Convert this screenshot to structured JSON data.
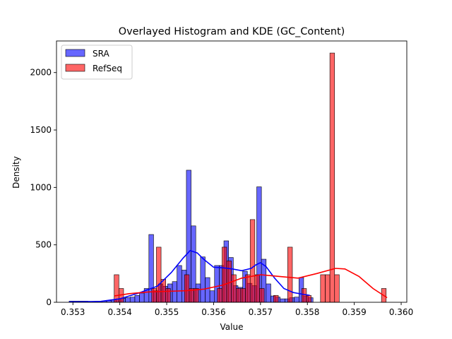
{
  "chart_data": {
    "type": "bar",
    "title": "Overlayed Histogram and KDE (GC_Content)",
    "xlabel": "Value",
    "ylabel": "Density",
    "xlim": [
      0.35265,
      0.36012
    ],
    "ylim": [
      0,
      2275
    ],
    "xticks": [
      0.353,
      0.354,
      0.355,
      0.356,
      0.357,
      0.358,
      0.359,
      0.36
    ],
    "xtick_labels": [
      "0.353",
      "0.354",
      "0.355",
      "0.356",
      "0.357",
      "0.358",
      "0.359",
      "0.360"
    ],
    "yticks": [
      0,
      500,
      1000,
      1500,
      2000
    ],
    "ytick_labels": [
      "0",
      "500",
      "1000",
      "1500",
      "2000"
    ],
    "grid": false,
    "legend_position": "upper-left",
    "series": [
      {
        "name": "SRA",
        "kind": "histogram",
        "color": "#0000ff",
        "alpha": 0.6,
        "bin_width": 0.0001,
        "bins": [
          [
            0.35292,
            10
          ],
          [
            0.35302,
            10
          ],
          [
            0.35312,
            10
          ],
          [
            0.35322,
            10
          ],
          [
            0.35332,
            5
          ],
          [
            0.35342,
            5
          ],
          [
            0.35352,
            5
          ],
          [
            0.35362,
            10
          ],
          [
            0.35372,
            15
          ],
          [
            0.35382,
            20
          ],
          [
            0.35392,
            30
          ],
          [
            0.35402,
            35
          ],
          [
            0.35412,
            40
          ],
          [
            0.35422,
            45
          ],
          [
            0.35432,
            60
          ],
          [
            0.35442,
            80
          ],
          [
            0.35452,
            120
          ],
          [
            0.35462,
            590
          ],
          [
            0.35472,
            100
          ],
          [
            0.35482,
            160
          ],
          [
            0.35492,
            140
          ],
          [
            0.35502,
            160
          ],
          [
            0.35512,
            180
          ],
          [
            0.35522,
            320
          ],
          [
            0.35532,
            280
          ],
          [
            0.35542,
            1150
          ],
          [
            0.35552,
            665
          ],
          [
            0.35562,
            160
          ],
          [
            0.35572,
            395
          ],
          [
            0.35582,
            215
          ],
          [
            0.35592,
            100
          ],
          [
            0.35602,
            320
          ],
          [
            0.35612,
            320
          ],
          [
            0.35622,
            535
          ],
          [
            0.35632,
            390
          ],
          [
            0.35642,
            145
          ],
          [
            0.35652,
            130
          ],
          [
            0.35662,
            270
          ],
          [
            0.35672,
            165
          ],
          [
            0.35682,
            145
          ],
          [
            0.35692,
            1005
          ],
          [
            0.35702,
            375
          ],
          [
            0.35712,
            160
          ],
          [
            0.35722,
            55
          ],
          [
            0.35732,
            45
          ],
          [
            0.35742,
            30
          ],
          [
            0.35752,
            30
          ],
          [
            0.35762,
            40
          ],
          [
            0.35772,
            45
          ],
          [
            0.35782,
            215
          ],
          [
            0.35792,
            55
          ],
          [
            0.35802,
            40
          ]
        ],
        "kde": [
          [
            0.35292,
            5
          ],
          [
            0.3532,
            5
          ],
          [
            0.3536,
            8
          ],
          [
            0.354,
            30
          ],
          [
            0.3544,
            80
          ],
          [
            0.3548,
            140
          ],
          [
            0.3551,
            260
          ],
          [
            0.35535,
            385
          ],
          [
            0.3555,
            450
          ],
          [
            0.35565,
            430
          ],
          [
            0.3558,
            370
          ],
          [
            0.356,
            305
          ],
          [
            0.3562,
            300
          ],
          [
            0.3564,
            290
          ],
          [
            0.3566,
            275
          ],
          [
            0.3568,
            295
          ],
          [
            0.3569,
            325
          ],
          [
            0.357,
            345
          ],
          [
            0.35712,
            310
          ],
          [
            0.3573,
            210
          ],
          [
            0.3575,
            120
          ],
          [
            0.3577,
            85
          ],
          [
            0.3579,
            70
          ],
          [
            0.35805,
            60
          ]
        ]
      },
      {
        "name": "RefSeq",
        "kind": "histogram",
        "color": "#ff0000",
        "alpha": 0.6,
        "bin_width": 0.0001,
        "bins": [
          [
            0.35388,
            240
          ],
          [
            0.35398,
            120
          ],
          [
            0.35408,
            0
          ],
          [
            0.35418,
            0
          ],
          [
            0.35428,
            0
          ],
          [
            0.35438,
            0
          ],
          [
            0.35448,
            0
          ],
          [
            0.35458,
            0
          ],
          [
            0.35468,
            120
          ],
          [
            0.35478,
            480
          ],
          [
            0.35488,
            200
          ],
          [
            0.35498,
            120
          ],
          [
            0.35508,
            0
          ],
          [
            0.35518,
            0
          ],
          [
            0.35528,
            0
          ],
          [
            0.35538,
            240
          ],
          [
            0.35548,
            120
          ],
          [
            0.35558,
            120
          ],
          [
            0.35568,
            0
          ],
          [
            0.35578,
            0
          ],
          [
            0.35588,
            0
          ],
          [
            0.35598,
            0
          ],
          [
            0.35608,
            120
          ],
          [
            0.35618,
            480
          ],
          [
            0.35628,
            360
          ],
          [
            0.35638,
            240
          ],
          [
            0.35648,
            120
          ],
          [
            0.35658,
            120
          ],
          [
            0.35668,
            240
          ],
          [
            0.35678,
            720
          ],
          [
            0.35688,
            240
          ],
          [
            0.35698,
            120
          ],
          [
            0.35708,
            0
          ],
          [
            0.35718,
            0
          ],
          [
            0.35728,
            60
          ],
          [
            0.35738,
            0
          ],
          [
            0.35748,
            0
          ],
          [
            0.35758,
            480
          ],
          [
            0.35768,
            0
          ],
          [
            0.35778,
            0
          ],
          [
            0.35788,
            120
          ],
          [
            0.35798,
            60
          ],
          [
            0.35808,
            0
          ],
          [
            0.35818,
            0
          ],
          [
            0.35828,
            240
          ],
          [
            0.35838,
            240
          ],
          [
            0.35848,
            2170
          ],
          [
            0.35858,
            240
          ],
          [
            0.35868,
            0
          ],
          [
            0.35878,
            0
          ],
          [
            0.35888,
            0
          ],
          [
            0.35898,
            0
          ],
          [
            0.35908,
            0
          ],
          [
            0.35918,
            0
          ],
          [
            0.35928,
            0
          ],
          [
            0.35938,
            0
          ],
          [
            0.35948,
            0
          ],
          [
            0.35958,
            120
          ]
        ],
        "kde": [
          [
            0.35388,
            55
          ],
          [
            0.3542,
            75
          ],
          [
            0.3546,
            90
          ],
          [
            0.355,
            95
          ],
          [
            0.3554,
            100
          ],
          [
            0.3558,
            115
          ],
          [
            0.3562,
            150
          ],
          [
            0.3566,
            210
          ],
          [
            0.357,
            240
          ],
          [
            0.3574,
            225
          ],
          [
            0.3578,
            210
          ],
          [
            0.3582,
            250
          ],
          [
            0.3586,
            295
          ],
          [
            0.3588,
            290
          ],
          [
            0.3591,
            225
          ],
          [
            0.3594,
            120
          ],
          [
            0.3597,
            40
          ]
        ]
      }
    ]
  }
}
